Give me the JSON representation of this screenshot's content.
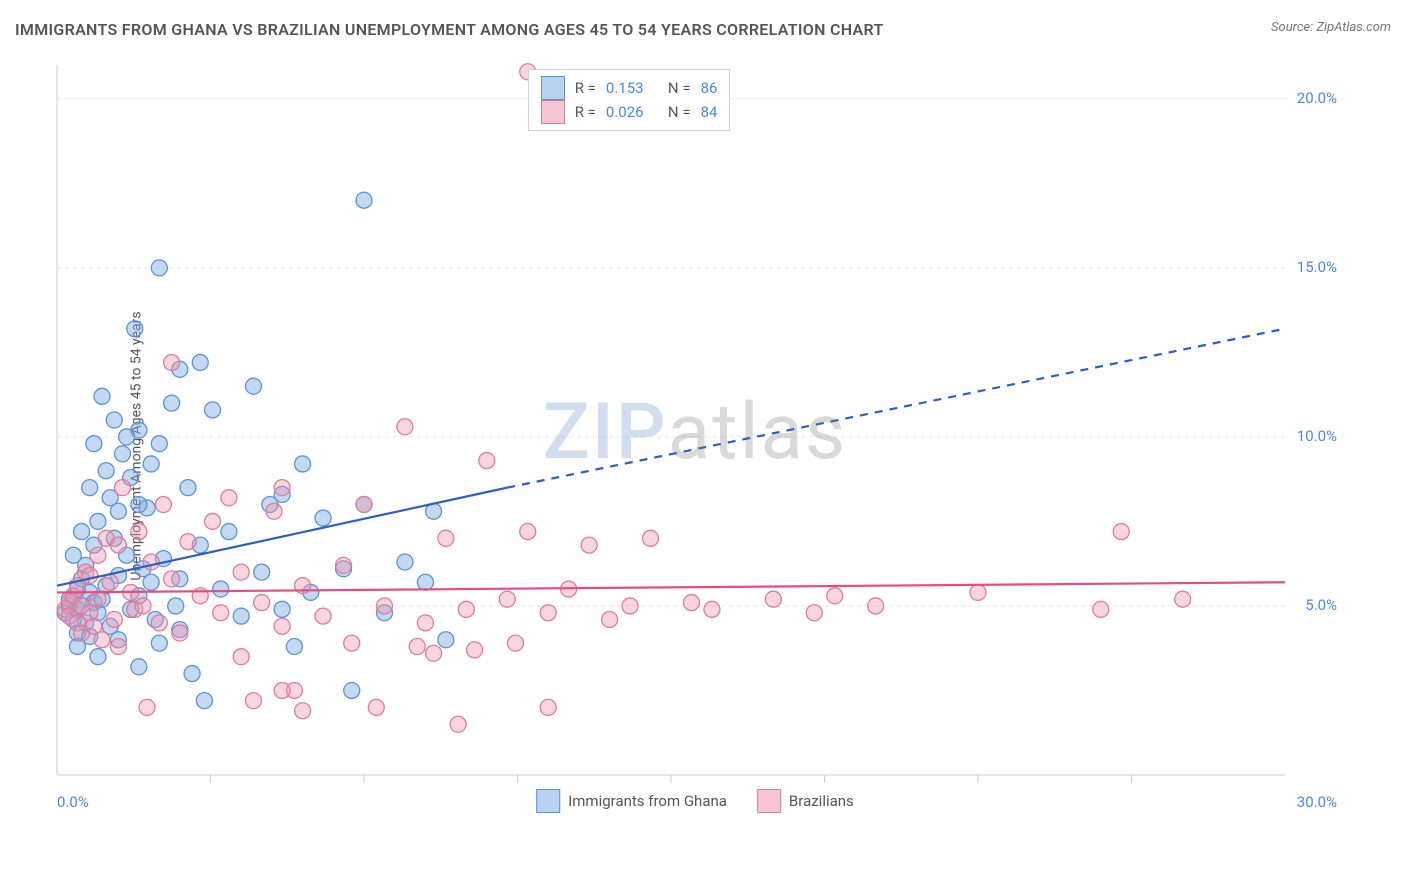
{
  "title": "IMMIGRANTS FROM GHANA VS BRAZILIAN UNEMPLOYMENT AMONG AGES 45 TO 54 YEARS CORRELATION CHART",
  "source": "Source: ZipAtlas.com",
  "ylabel": "Unemployment Among Ages 45 to 54 years",
  "watermark_a": "ZIP",
  "watermark_b": "atlas",
  "chart": {
    "type": "scatter",
    "background_color": "#ffffff",
    "grid_color": "#e5e5e5",
    "axis_line_color": "#cccccc",
    "tick_label_color": "#4a86e8",
    "xlim": [
      0,
      30
    ],
    "ylim": [
      0,
      21
    ],
    "ytick_step": 5,
    "yticks": [
      5,
      10,
      15,
      20
    ],
    "ytick_labels": [
      "5.0%",
      "10.0%",
      "15.0%",
      "20.0%"
    ],
    "xticks": [
      0,
      30
    ],
    "xtick_labels": [
      "0.0%",
      "30.0%"
    ],
    "xgrid_positions": [
      3.75,
      7.5,
      11.25,
      15,
      18.75,
      22.5,
      26.25
    ],
    "marker_radius": 8,
    "marker_stroke_width": 1.3,
    "series": [
      {
        "name": "Immigrants from Ghana",
        "legend_label": "Immigrants from Ghana",
        "fill": "rgba(120, 170, 225, 0.45)",
        "stroke": "#5b93d6",
        "swatch_fill": "#b8d3ef",
        "swatch_border": "#5b93d6",
        "R": "0.153",
        "N": "86",
        "trend": {
          "color": "#2d5fbf",
          "width": 2.2,
          "solid": {
            "x1": 0,
            "y1": 5.6,
            "x2": 11,
            "y2": 8.5
          },
          "dashed": {
            "x1": 11,
            "y1": 8.5,
            "x2": 30,
            "y2": 13.2
          }
        },
        "points": [
          [
            0.2,
            4.8
          ],
          [
            0.3,
            5.0
          ],
          [
            0.3,
            5.2
          ],
          [
            0.4,
            4.6
          ],
          [
            0.4,
            5.3
          ],
          [
            0.5,
            4.2
          ],
          [
            0.5,
            5.5
          ],
          [
            0.5,
            4.9
          ],
          [
            0.6,
            5.0
          ],
          [
            0.6,
            5.8
          ],
          [
            0.7,
            4.5
          ],
          [
            0.7,
            6.2
          ],
          [
            0.8,
            5.4
          ],
          [
            0.8,
            4.1
          ],
          [
            0.9,
            6.8
          ],
          [
            0.9,
            5.1
          ],
          [
            1.0,
            7.5
          ],
          [
            1.0,
            4.8
          ],
          [
            1.1,
            5.2
          ],
          [
            1.2,
            9.0
          ],
          [
            1.2,
            5.6
          ],
          [
            1.3,
            8.2
          ],
          [
            1.3,
            4.4
          ],
          [
            1.4,
            10.5
          ],
          [
            1.5,
            5.9
          ],
          [
            1.5,
            7.8
          ],
          [
            1.6,
            9.5
          ],
          [
            1.7,
            6.5
          ],
          [
            1.8,
            4.9
          ],
          [
            1.8,
            8.8
          ],
          [
            1.9,
            13.2
          ],
          [
            2.0,
            5.3
          ],
          [
            2.0,
            10.2
          ],
          [
            2.1,
            6.1
          ],
          [
            2.2,
            7.9
          ],
          [
            2.3,
            5.7
          ],
          [
            2.4,
            4.6
          ],
          [
            2.5,
            9.8
          ],
          [
            2.5,
            15.0
          ],
          [
            2.6,
            6.4
          ],
          [
            2.8,
            11.0
          ],
          [
            2.9,
            5.0
          ],
          [
            3.0,
            12.0
          ],
          [
            3.0,
            4.3
          ],
          [
            3.2,
            8.5
          ],
          [
            3.3,
            3.0
          ],
          [
            3.5,
            6.8
          ],
          [
            3.5,
            12.2
          ],
          [
            3.6,
            2.2
          ],
          [
            3.8,
            10.8
          ],
          [
            4.0,
            5.5
          ],
          [
            4.2,
            7.2
          ],
          [
            4.5,
            4.7
          ],
          [
            4.8,
            11.5
          ],
          [
            5.0,
            6.0
          ],
          [
            5.2,
            8.0
          ],
          [
            5.5,
            4.9
          ],
          [
            5.5,
            8.3
          ],
          [
            5.8,
            3.8
          ],
          [
            6.0,
            9.2
          ],
          [
            6.2,
            5.4
          ],
          [
            6.5,
            7.6
          ],
          [
            7.0,
            6.1
          ],
          [
            7.2,
            2.5
          ],
          [
            7.5,
            8.0
          ],
          [
            7.5,
            17.0
          ],
          [
            8.0,
            4.8
          ],
          [
            8.5,
            6.3
          ],
          [
            9.0,
            5.7
          ],
          [
            9.2,
            7.8
          ],
          [
            9.5,
            4.0
          ],
          [
            0.5,
            3.8
          ],
          [
            1.0,
            3.5
          ],
          [
            1.5,
            4.0
          ],
          [
            2.0,
            3.2
          ],
          [
            2.5,
            3.9
          ],
          [
            3.0,
            5.8
          ],
          [
            0.8,
            8.5
          ],
          [
            1.1,
            11.2
          ],
          [
            1.4,
            7.0
          ],
          [
            1.7,
            10.0
          ],
          [
            2.0,
            8.0
          ],
          [
            2.3,
            9.2
          ],
          [
            0.4,
            6.5
          ],
          [
            0.6,
            7.2
          ],
          [
            0.9,
            9.8
          ]
        ]
      },
      {
        "name": "Brazilians",
        "legend_label": "Brazilians",
        "fill": "rgba(240, 150, 175, 0.40)",
        "stroke": "#e07a9b",
        "swatch_fill": "#f5c5d3",
        "swatch_border": "#e07a9b",
        "R": "0.026",
        "N": "84",
        "trend": {
          "color": "#e94b7d",
          "width": 2.2,
          "solid": {
            "x1": 0,
            "y1": 5.4,
            "x2": 30,
            "y2": 5.7
          },
          "dashed": null
        },
        "points": [
          [
            0.2,
            4.9
          ],
          [
            0.3,
            5.1
          ],
          [
            0.3,
            4.7
          ],
          [
            0.4,
            5.3
          ],
          [
            0.5,
            4.5
          ],
          [
            0.5,
            5.6
          ],
          [
            0.6,
            4.2
          ],
          [
            0.6,
            5.0
          ],
          [
            0.7,
            6.0
          ],
          [
            0.8,
            4.8
          ],
          [
            0.8,
            5.9
          ],
          [
            0.9,
            4.4
          ],
          [
            1.0,
            6.5
          ],
          [
            1.0,
            5.2
          ],
          [
            1.1,
            4.0
          ],
          [
            1.2,
            7.0
          ],
          [
            1.3,
            5.7
          ],
          [
            1.4,
            4.6
          ],
          [
            1.5,
            6.8
          ],
          [
            1.5,
            3.8
          ],
          [
            1.6,
            8.5
          ],
          [
            1.8,
            5.4
          ],
          [
            1.9,
            4.9
          ],
          [
            2.0,
            7.2
          ],
          [
            2.1,
            5.0
          ],
          [
            2.3,
            6.3
          ],
          [
            2.5,
            4.5
          ],
          [
            2.6,
            8.0
          ],
          [
            2.8,
            12.2
          ],
          [
            2.8,
            5.8
          ],
          [
            3.0,
            4.2
          ],
          [
            3.2,
            6.9
          ],
          [
            3.5,
            5.3
          ],
          [
            3.8,
            7.5
          ],
          [
            4.0,
            4.8
          ],
          [
            4.2,
            8.2
          ],
          [
            4.5,
            3.5
          ],
          [
            4.5,
            6.0
          ],
          [
            5.0,
            5.1
          ],
          [
            5.3,
            7.8
          ],
          [
            5.5,
            4.4
          ],
          [
            5.5,
            8.5
          ],
          [
            5.8,
            2.5
          ],
          [
            6.0,
            1.9
          ],
          [
            6.0,
            5.6
          ],
          [
            6.5,
            4.7
          ],
          [
            7.0,
            6.2
          ],
          [
            7.2,
            3.9
          ],
          [
            7.5,
            8.0
          ],
          [
            7.8,
            2.0
          ],
          [
            8.0,
            5.0
          ],
          [
            8.5,
            10.3
          ],
          [
            8.8,
            3.8
          ],
          [
            9.0,
            4.5
          ],
          [
            9.2,
            3.6
          ],
          [
            9.5,
            7.0
          ],
          [
            9.8,
            1.5
          ],
          [
            10.0,
            4.9
          ],
          [
            10.2,
            3.7
          ],
          [
            10.5,
            9.3
          ],
          [
            11.0,
            5.2
          ],
          [
            11.2,
            3.9
          ],
          [
            11.5,
            7.2
          ],
          [
            12.0,
            2.0
          ],
          [
            12.0,
            4.8
          ],
          [
            12.5,
            5.5
          ],
          [
            13.0,
            6.8
          ],
          [
            13.5,
            4.6
          ],
          [
            14.0,
            5.0
          ],
          [
            14.5,
            7.0
          ],
          [
            15.5,
            5.1
          ],
          [
            16.0,
            4.9
          ],
          [
            17.5,
            5.2
          ],
          [
            18.5,
            4.8
          ],
          [
            19.0,
            5.3
          ],
          [
            20.0,
            5.0
          ],
          [
            22.5,
            5.4
          ],
          [
            25.5,
            4.9
          ],
          [
            26.0,
            7.2
          ],
          [
            27.5,
            5.2
          ],
          [
            11.5,
            20.8
          ],
          [
            2.2,
            2.0
          ],
          [
            4.8,
            2.2
          ],
          [
            5.5,
            2.5
          ]
        ]
      }
    ]
  },
  "legend_top": {
    "R_label": "R =",
    "N_label": "N ="
  }
}
